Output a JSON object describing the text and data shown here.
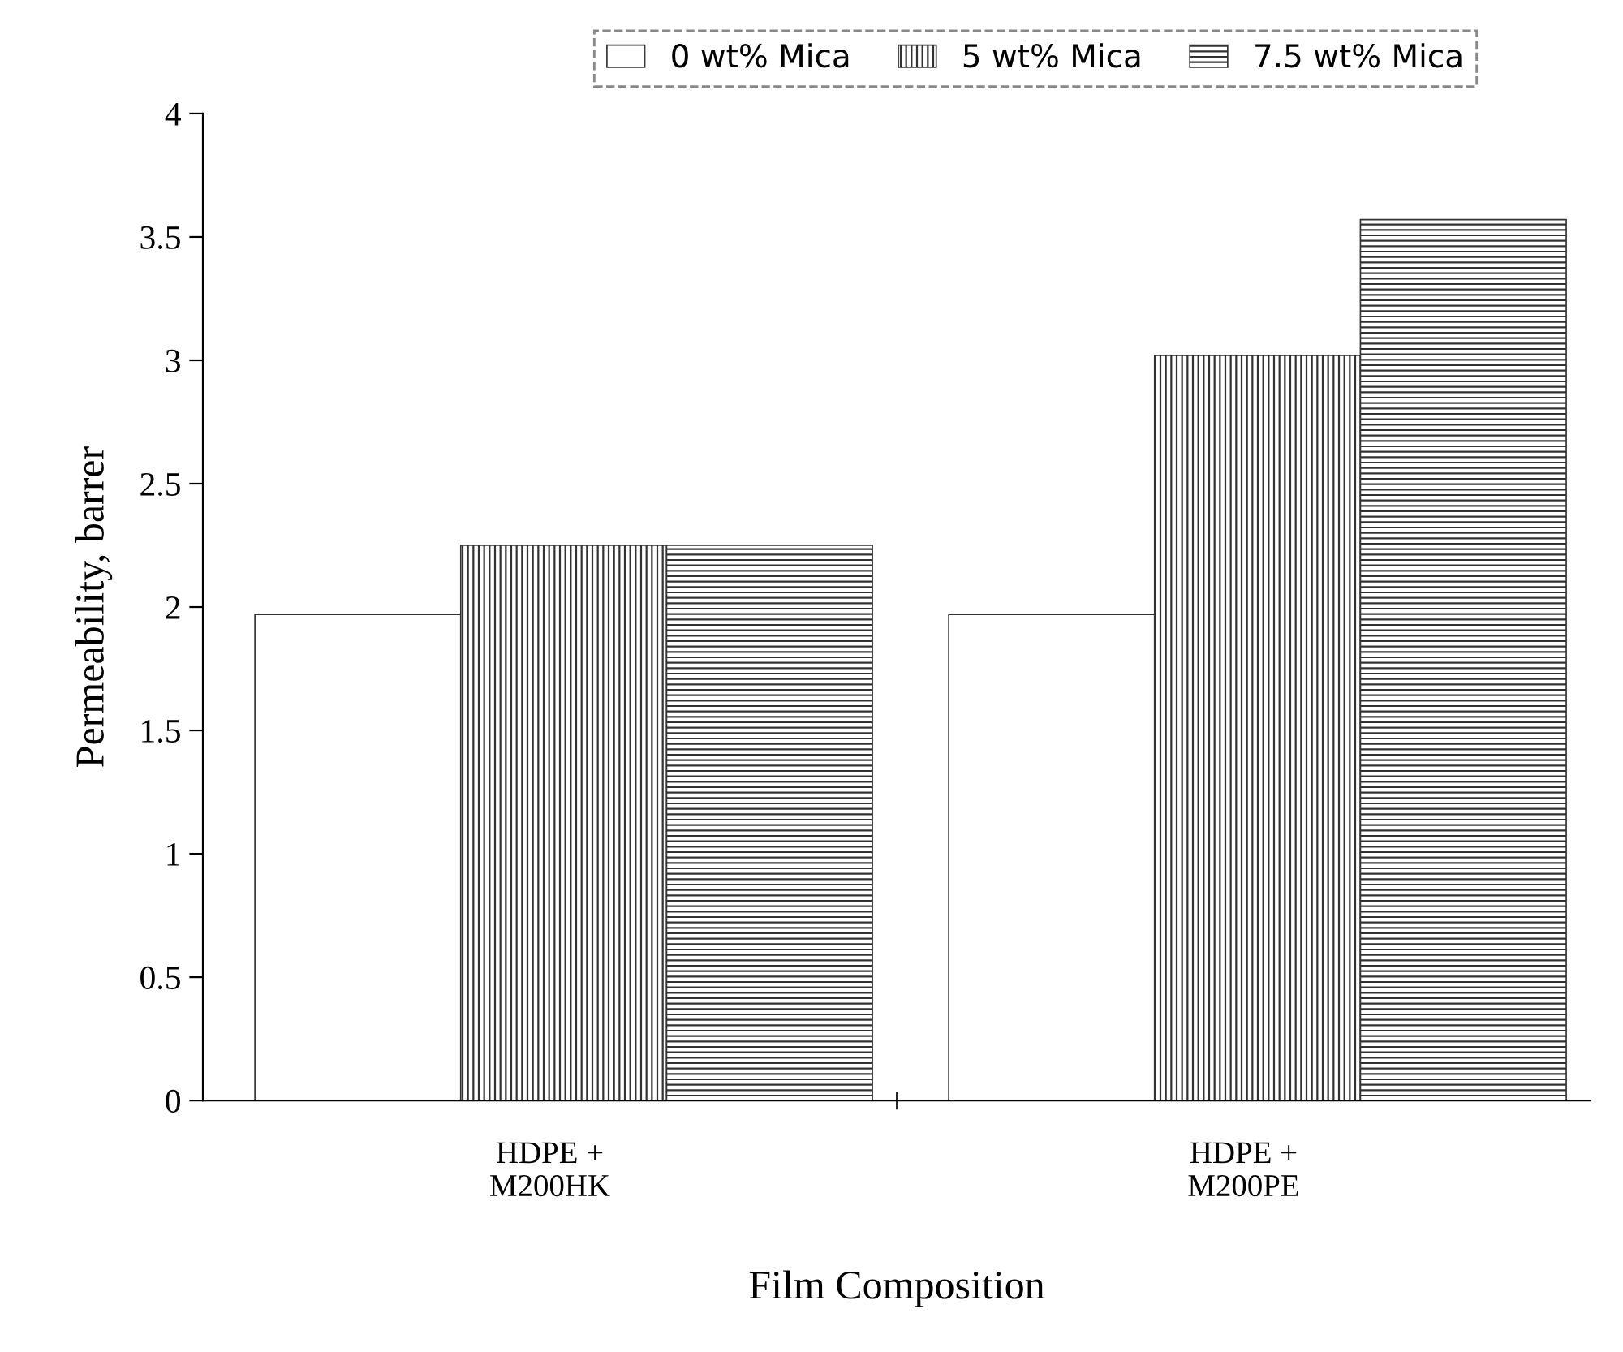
{
  "chart_data": {
    "type": "bar",
    "categories": [
      "HDPE +\nM200HK",
      "HDPE +\nM200PE"
    ],
    "series": [
      {
        "name": "0 wt% Mica",
        "color": "#ffffff",
        "values": [
          1.97,
          1.97
        ]
      },
      {
        "name": "5 wt% Mica",
        "color": "#333333",
        "values": [
          2.25,
          3.02
        ]
      },
      {
        "name": "7.5 wt% Mica",
        "color": "#333333",
        "values": [
          2.25,
          3.57
        ]
      }
    ],
    "xlabel": "Film Composition",
    "ylabel": "Permeability, barrer",
    "ylim": [
      0,
      4
    ],
    "yticks": [
      0,
      0.5,
      1,
      1.5,
      2,
      2.5,
      3,
      3.5,
      4
    ],
    "grid": false,
    "legend": "top"
  }
}
